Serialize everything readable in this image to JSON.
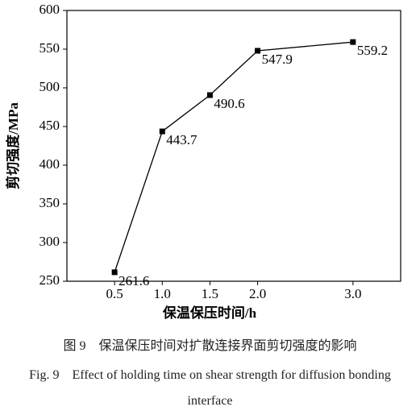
{
  "chart_data": {
    "type": "line",
    "xlabel": "保温保压时间/h",
    "ylabel": "剪切强度/MPa",
    "x": [
      0.5,
      1.0,
      1.5,
      2.0,
      3.0
    ],
    "values": [
      261.6,
      443.7,
      490.6,
      547.9,
      559.2
    ],
    "color": "#000000",
    "xlim": [
      0,
      3.5
    ],
    "ylim": [
      250,
      600
    ],
    "xticks": [
      {
        "value": 0.5,
        "label": "0.5"
      },
      {
        "value": 1,
        "label": "1.0"
      },
      {
        "value": 1.5,
        "label": "1.5"
      },
      {
        "value": 2,
        "label": "2.0"
      },
      {
        "value": 3,
        "label": "3.0"
      }
    ],
    "yticks": [
      250,
      300,
      350,
      400,
      450,
      500,
      550,
      600
    ],
    "grid": false,
    "caption_cn": "图 9　保温保压时间对扩散连接界面剪切强度的影响",
    "caption_en": "Fig. 9　Effect of holding time on shear strength for diffusion bonding interface"
  }
}
